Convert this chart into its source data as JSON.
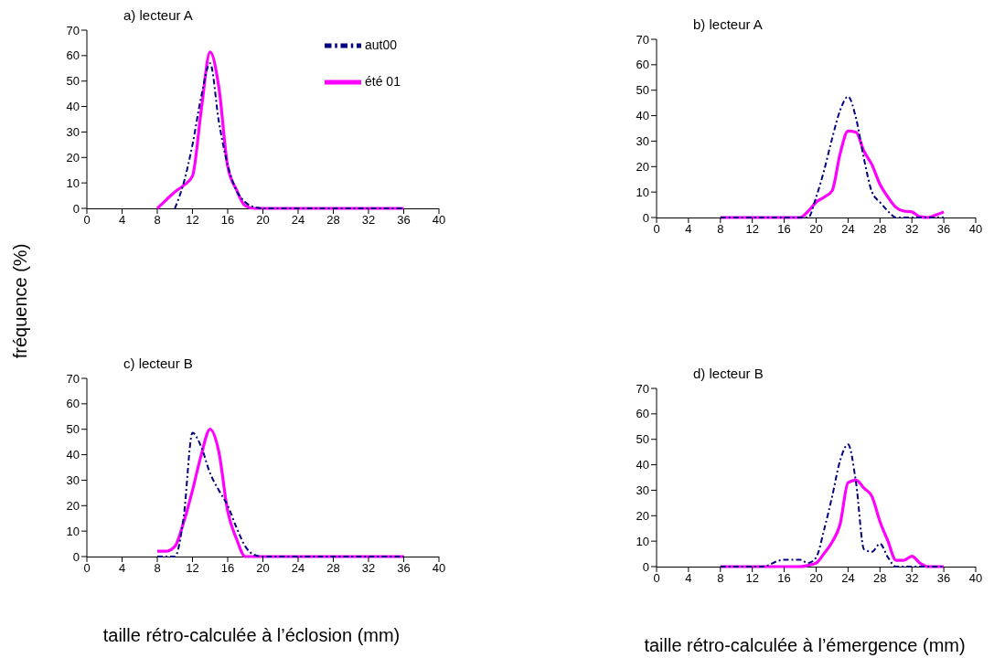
{
  "chart_data": [
    {
      "type": "line",
      "title": "a) lecteur A",
      "ylabel": "fréquence (%)",
      "legend": "top right",
      "x": [
        8,
        9,
        10,
        11,
        12,
        13,
        14,
        15,
        16,
        17,
        18,
        19,
        20,
        21,
        22,
        23,
        24,
        25,
        26,
        27,
        28,
        29,
        30,
        31,
        32,
        33,
        34,
        35,
        36
      ],
      "xlim": [
        0,
        40
      ],
      "xticks": [
        0,
        4,
        8,
        12,
        16,
        20,
        24,
        28,
        32,
        36,
        40
      ],
      "ylim": [
        0,
        70
      ],
      "yticks": [
        0,
        10,
        20,
        30,
        40,
        50,
        60,
        70
      ],
      "grid": false,
      "marker": "none",
      "series": [
        {
          "name": "aut00",
          "color": "#000080",
          "line_style": "dashed",
          "values": [
            null,
            null,
            0,
            10,
            25,
            44,
            57,
            34,
            17,
            7,
            2.4,
            0.5,
            0,
            0,
            0,
            0,
            0,
            0,
            0,
            0,
            0,
            0,
            0,
            0,
            0,
            0,
            0,
            0,
            0
          ]
        },
        {
          "name": "été 01",
          "color": "#ff00ff",
          "line_style": "solid",
          "values": [
            0,
            3.3,
            6.5,
            9,
            12.7,
            38.8,
            61.4,
            47.5,
            16.5,
            7.3,
            1,
            0,
            0,
            0,
            0,
            0,
            0,
            0,
            0,
            0,
            0,
            0,
            0,
            0,
            0,
            0,
            0,
            0,
            0
          ]
        }
      ]
    },
    {
      "type": "line",
      "title": "b) lecteur A",
      "legend": false,
      "x": [
        8,
        9,
        10,
        11,
        12,
        13,
        14,
        15,
        16,
        17,
        18,
        19,
        20,
        21,
        22,
        23,
        24,
        25,
        26,
        27,
        28,
        29,
        30,
        31,
        32,
        33,
        34,
        35,
        36
      ],
      "xlim": [
        0,
        40
      ],
      "xticks": [
        0,
        4,
        8,
        12,
        16,
        20,
        24,
        28,
        32,
        36,
        40
      ],
      "ylim": [
        0,
        70
      ],
      "yticks": [
        0,
        10,
        20,
        30,
        40,
        50,
        60,
        70
      ],
      "grid": false,
      "marker": "none",
      "series": [
        {
          "color": "#000080",
          "line_style": "dashed",
          "values": [
            0,
            0,
            0,
            0,
            0,
            0,
            0,
            0,
            0,
            0,
            0,
            0,
            8,
            18.5,
            31,
            42,
            47.5,
            39,
            23,
            10,
            6,
            2.5,
            0,
            0,
            0,
            0,
            0,
            0,
            0
          ]
        },
        {
          "color": "#ff00ff",
          "line_style": "solid",
          "values": [
            0,
            0,
            0,
            0,
            0,
            0,
            0,
            0,
            0,
            0,
            0,
            2.5,
            6,
            8,
            10.5,
            25,
            34,
            33.5,
            26,
            20.7,
            13,
            8,
            4,
            2.5,
            2.2,
            0.3,
            0,
            1,
            2.2
          ]
        }
      ]
    },
    {
      "type": "line",
      "title": "c) lecteur B",
      "xlabel": "taille rétro-calculée à l’éclosion (mm)",
      "legend": false,
      "x": [
        8,
        9,
        10,
        11,
        12,
        13,
        14,
        15,
        16,
        17,
        18,
        19,
        20,
        21,
        22,
        23,
        24,
        25,
        26,
        27,
        28,
        29,
        30,
        31,
        32,
        33,
        34,
        35,
        36
      ],
      "xlim": [
        0,
        40
      ],
      "xticks": [
        0,
        4,
        8,
        12,
        16,
        20,
        24,
        28,
        32,
        36,
        40
      ],
      "ylim": [
        0,
        70
      ],
      "yticks": [
        0,
        10,
        20,
        30,
        40,
        50,
        60,
        70
      ],
      "grid": false,
      "marker": "none",
      "series": [
        {
          "color": "#000080",
          "line_style": "dashed",
          "values": [
            0,
            0,
            0,
            15.6,
            48.6,
            43,
            32.7,
            26,
            20,
            11.4,
            4,
            0.7,
            0,
            0,
            0,
            0,
            0,
            0,
            0,
            0,
            0,
            0,
            0,
            0,
            0,
            0,
            0,
            0,
            0
          ]
        },
        {
          "color": "#ff00ff",
          "line_style": "solid",
          "values": [
            2.1,
            2.1,
            4,
            13.5,
            26,
            40,
            50,
            41,
            17.8,
            7,
            0,
            0,
            0,
            0,
            0,
            0,
            0,
            0,
            0,
            0,
            0,
            0,
            0,
            0,
            0,
            0,
            0,
            0,
            0
          ]
        }
      ]
    },
    {
      "type": "line",
      "title": "d) lecteur B",
      "xlabel": "taille rétro-calculée à l’émergence (mm)",
      "legend": false,
      "x": [
        8,
        9,
        10,
        11,
        12,
        13,
        14,
        15,
        16,
        17,
        18,
        19,
        20,
        21,
        22,
        23,
        24,
        25,
        26,
        27,
        28,
        29,
        30,
        31,
        32,
        33,
        34,
        35,
        36
      ],
      "xlim": [
        0,
        40
      ],
      "xticks": [
        0,
        4,
        8,
        12,
        16,
        20,
        24,
        28,
        32,
        36,
        40
      ],
      "ylim": [
        0,
        70
      ],
      "yticks": [
        0,
        10,
        20,
        30,
        40,
        50,
        60,
        70
      ],
      "grid": false,
      "marker": "none",
      "series": [
        {
          "color": "#000080",
          "line_style": "dashed",
          "values": [
            0,
            0,
            0,
            0,
            0,
            0,
            0.5,
            2,
            2.7,
            2.7,
            2.7,
            1.4,
            3.6,
            14.5,
            27.5,
            41.6,
            48,
            33,
            6.8,
            5.8,
            9,
            3.6,
            0,
            0,
            0,
            0,
            0,
            0,
            0
          ]
        },
        {
          "color": "#ff00ff",
          "line_style": "solid",
          "values": [
            0,
            0,
            0,
            0,
            0,
            0,
            0,
            0,
            0,
            0,
            0,
            0.5,
            1.4,
            5.2,
            9.6,
            16.6,
            33,
            34,
            30.8,
            27.5,
            17.7,
            10,
            2.5,
            2.5,
            4.1,
            1.4,
            0,
            0,
            0
          ]
        }
      ]
    }
  ]
}
